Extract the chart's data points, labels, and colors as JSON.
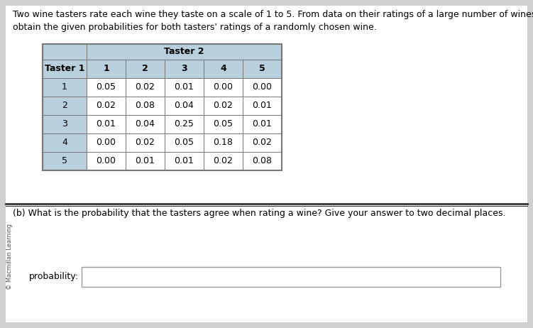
{
  "title_text": "Two wine tasters rate each wine they taste on a scale of 1 to 5. From data on their ratings of a large number of wines, we\nobtain the given probabilities for both tasters' ratings of a randomly chosen wine.",
  "taster2_label": "Taster 2",
  "taster1_label": "Taster 1",
  "col_headers": [
    "1",
    "2",
    "3",
    "4",
    "5"
  ],
  "row_headers": [
    "1",
    "2",
    "3",
    "4",
    "5"
  ],
  "table_data": [
    [
      0.05,
      0.02,
      0.01,
      0.0,
      0.0
    ],
    [
      0.02,
      0.08,
      0.04,
      0.02,
      0.01
    ],
    [
      0.01,
      0.04,
      0.25,
      0.05,
      0.01
    ],
    [
      0.0,
      0.02,
      0.05,
      0.18,
      0.02
    ],
    [
      0.0,
      0.01,
      0.01,
      0.02,
      0.08
    ]
  ],
  "header_bg": "#b8d0de",
  "row_header_bg": "#b8d0de",
  "cell_bg": "#ffffff",
  "table_border": "#777777",
  "question_text": "(b) What is the probability that the tasters agree when rating a wine? Give your answer to two decimal places.",
  "answer_label": "probability:",
  "bg_color": "#d0d0d0",
  "white_bg": "#ffffff",
  "separator_color": "#333333",
  "side_label": "© Macmillan Learning",
  "title_fontsize": 9.0,
  "table_fontsize": 9.0,
  "question_fontsize": 9.0
}
